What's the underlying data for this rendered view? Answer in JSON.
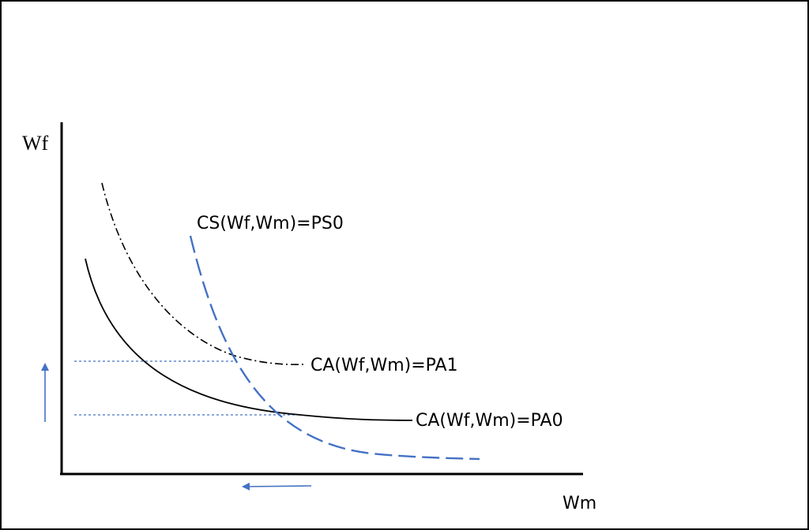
{
  "diagram": {
    "axes": {
      "y_label": "Wf",
      "x_label": "Wm"
    },
    "curves": [
      {
        "id": "pa0",
        "label": "CA(Wf,Wm)=PA0",
        "style": "solid",
        "color": "#000000"
      },
      {
        "id": "pa1",
        "label": "CA(Wf,Wm)=PA1",
        "style": "dash-dot",
        "color": "#000000"
      },
      {
        "id": "ps0",
        "label": "CS(Wf,Wm)=PS0",
        "style": "long-dash",
        "color": "#4472C4"
      }
    ],
    "guides": {
      "style": "dotted",
      "color": "#4472C4"
    },
    "arrows": [
      {
        "id": "up-arrow",
        "direction": "up",
        "color": "#4472C4"
      },
      {
        "id": "left-arrow",
        "direction": "left",
        "color": "#4472C4"
      }
    ],
    "frame_color": "#000000"
  }
}
